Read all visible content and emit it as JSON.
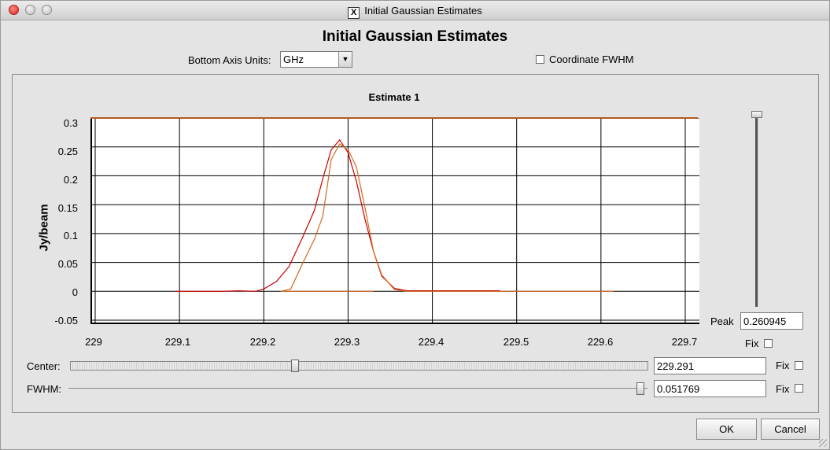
{
  "window": {
    "title": "Initial Gaussian Estimates"
  },
  "dialog": {
    "heading": "Initial Gaussian Estimates"
  },
  "controls": {
    "bottom_axis_label": "Bottom Axis Units:",
    "bottom_axis_value": "GHz",
    "coordinate_fwhm_label": "Coordinate FWHM",
    "coordinate_fwhm_checked": false
  },
  "chart_data": {
    "type": "line",
    "title": "Estimate 1",
    "ylabel": "Jy/beam",
    "xlabel": "",
    "xlim": [
      229,
      229.7
    ],
    "ylim": [
      -0.05,
      0.3
    ],
    "xticks": [
      "229",
      "229.1",
      "229.2",
      "229.3",
      "229.4",
      "229.5",
      "229.6",
      "229.7"
    ],
    "yticks": [
      "0.3",
      "0.25",
      "0.2",
      "0.15",
      "0.1",
      "0.05",
      "0",
      "-0.05"
    ],
    "grid": true,
    "series": [
      {
        "color": "#cc0000",
        "x": [
          229.095,
          229.15,
          229.17,
          229.19,
          229.2,
          229.215,
          229.23,
          229.245,
          229.26,
          229.27,
          229.28,
          229.29,
          229.3,
          229.31,
          229.32,
          229.33,
          229.34,
          229.355,
          229.37,
          229.48
        ],
        "y": [
          0,
          0,
          0.001,
          0,
          0.004,
          0.017,
          0.043,
          0.09,
          0.14,
          0.195,
          0.245,
          0.262,
          0.24,
          0.19,
          0.125,
          0.07,
          0.026,
          0.005,
          0.001,
          0.001
        ]
      },
      {
        "color": "#d2691e",
        "x": [
          229.33,
          229.22,
          229.232,
          229.245,
          229.26,
          229.27,
          229.28,
          229.29,
          229.3,
          229.31,
          229.32,
          229.33,
          229.34,
          229.355,
          229.37,
          229.615
        ],
        "y": [
          0,
          0,
          0.004,
          0.045,
          0.09,
          0.13,
          0.228,
          0.255,
          0.245,
          0.215,
          0.145,
          0.07,
          0.028,
          0.003,
          0,
          0
        ]
      }
    ]
  },
  "peak": {
    "label": "Peak",
    "value": "0.260945",
    "fix_label": "Fix",
    "fix_checked": false,
    "slider_position": 1.0
  },
  "center": {
    "label": "Center:",
    "value": "229.291",
    "fix_label": "Fix",
    "fix_checked": false,
    "slider_position": 0.387
  },
  "fwhm": {
    "label": "FWHM:",
    "value": "0.051769",
    "fix_label": "Fix",
    "fix_checked": false,
    "slider_position": 1.0
  },
  "buttons": {
    "ok": "OK",
    "cancel": "Cancel"
  }
}
